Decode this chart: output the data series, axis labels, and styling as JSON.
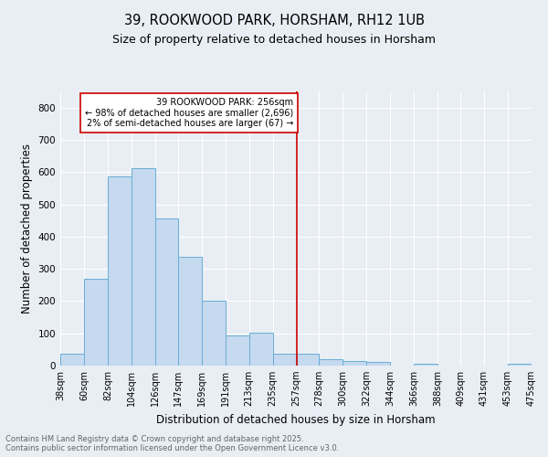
{
  "title": "39, ROOKWOOD PARK, HORSHAM, RH12 1UB",
  "subtitle": "Size of property relative to detached houses in Horsham",
  "xlabel": "Distribution of detached houses by size in Horsham",
  "ylabel": "Number of detached properties",
  "footnote1": "Contains HM Land Registry data © Crown copyright and database right 2025.",
  "footnote2": "Contains public sector information licensed under the Open Government Licence v3.0.",
  "bins": [
    38,
    60,
    82,
    104,
    126,
    147,
    169,
    191,
    213,
    235,
    257,
    278,
    300,
    322,
    344,
    366,
    388,
    409,
    431,
    453,
    475
  ],
  "counts": [
    38,
    268,
    587,
    611,
    457,
    337,
    200,
    93,
    101,
    38,
    37,
    20,
    13,
    11,
    0,
    5,
    0,
    0,
    0,
    5
  ],
  "bar_color": "#c5d9ef",
  "bar_edge_color": "#6aaed6",
  "property_line_x": 257,
  "property_line_color": "#cc0000",
  "annotation_text": "39 ROOKWOOD PARK: 256sqm\n← 98% of detached houses are smaller (2,696)\n2% of semi-detached houses are larger (67) →",
  "annotation_box_color": "#cc0000",
  "ylim": [
    0,
    850
  ],
  "yticks": [
    0,
    100,
    200,
    300,
    400,
    500,
    600,
    700,
    800
  ],
  "background_color": "#e8eef4",
  "plot_bg_color": "#e8eef4",
  "tick_labels": [
    "38sqm",
    "60sqm",
    "82sqm",
    "104sqm",
    "126sqm",
    "147sqm",
    "169sqm",
    "191sqm",
    "213sqm",
    "235sqm",
    "257sqm",
    "278sqm",
    "300sqm",
    "322sqm",
    "344sqm",
    "366sqm",
    "388sqm",
    "409sqm",
    "431sqm",
    "453sqm",
    "475sqm"
  ],
  "title_fontsize": 10.5,
  "subtitle_fontsize": 9,
  "ylabel_fontsize": 8.5,
  "xlabel_fontsize": 8.5,
  "tick_fontsize": 7,
  "footnote_fontsize": 6,
  "footnote_color": "#666666"
}
